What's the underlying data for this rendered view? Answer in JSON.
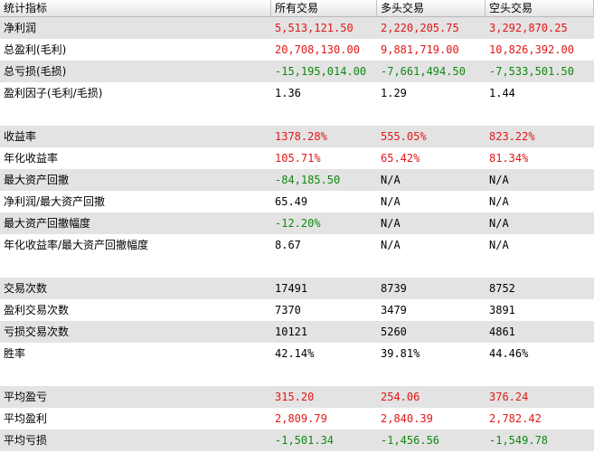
{
  "colors": {
    "positive": "#e21616",
    "negative": "#118811",
    "neutral": "#000000",
    "shade": "#e3e3e3"
  },
  "headers": [
    "统计指标",
    "所有交易",
    "多头交易",
    "空头交易"
  ],
  "rows": [
    {
      "label": "净利润",
      "values": [
        "5,513,121.50",
        "2,220,205.75",
        "3,292,870.25"
      ],
      "tone": "red",
      "shaded": true
    },
    {
      "label": "总盈利(毛利)",
      "values": [
        "20,708,130.00",
        "9,881,719.00",
        "10,826,392.00"
      ],
      "tone": "red",
      "shaded": false
    },
    {
      "label": "总亏损(毛损)",
      "values": [
        "-15,195,014.00",
        "-7,661,494.50",
        "-7,533,501.50"
      ],
      "tone": "green",
      "shaded": true
    },
    {
      "label": "盈利因子(毛利/毛损)",
      "values": [
        "1.36",
        "1.29",
        "1.44"
      ],
      "tone": "black",
      "shaded": false
    },
    {
      "label": "",
      "values": [
        "",
        "",
        ""
      ],
      "tone": "black",
      "shaded": false
    },
    {
      "label": "收益率",
      "values": [
        "1378.28%",
        "555.05%",
        "823.22%"
      ],
      "tone": "red",
      "shaded": true
    },
    {
      "label": "年化收益率",
      "values": [
        "105.71%",
        "65.42%",
        "81.34%"
      ],
      "tone": "red",
      "shaded": false
    },
    {
      "label": "最大资产回撤",
      "values": [
        "-84,185.50",
        "N/A",
        "N/A"
      ],
      "tone": "green",
      "shaded": true
    },
    {
      "label": "净利润/最大资产回撤",
      "values": [
        "65.49",
        "N/A",
        "N/A"
      ],
      "tone": "black",
      "shaded": false
    },
    {
      "label": "最大资产回撤幅度",
      "values": [
        "-12.20%",
        "N/A",
        "N/A"
      ],
      "tone": "green",
      "shaded": true
    },
    {
      "label": "年化收益率/最大资产回撤幅度",
      "values": [
        "8.67",
        "N/A",
        "N/A"
      ],
      "tone": "black",
      "shaded": false
    },
    {
      "label": "",
      "values": [
        "",
        "",
        ""
      ],
      "tone": "black",
      "shaded": false
    },
    {
      "label": "交易次数",
      "values": [
        "17491",
        "8739",
        "8752"
      ],
      "tone": "black",
      "shaded": true
    },
    {
      "label": "盈利交易次数",
      "values": [
        "7370",
        "3479",
        "3891"
      ],
      "tone": "black",
      "shaded": false
    },
    {
      "label": "亏损交易次数",
      "values": [
        "10121",
        "5260",
        "4861"
      ],
      "tone": "black",
      "shaded": true
    },
    {
      "label": "胜率",
      "values": [
        "42.14%",
        "39.81%",
        "44.46%"
      ],
      "tone": "black",
      "shaded": false
    },
    {
      "label": "",
      "values": [
        "",
        "",
        ""
      ],
      "tone": "black",
      "shaded": false
    },
    {
      "label": "平均盈亏",
      "values": [
        "315.20",
        "254.06",
        "376.24"
      ],
      "tone": "red",
      "shaded": true
    },
    {
      "label": "平均盈利",
      "values": [
        "2,809.79",
        "2,840.39",
        "2,782.42"
      ],
      "tone": "red",
      "shaded": false
    },
    {
      "label": "平均亏损",
      "values": [
        "-1,501.34",
        "-1,456.56",
        "-1,549.78"
      ],
      "tone": "green",
      "shaded": true
    }
  ]
}
